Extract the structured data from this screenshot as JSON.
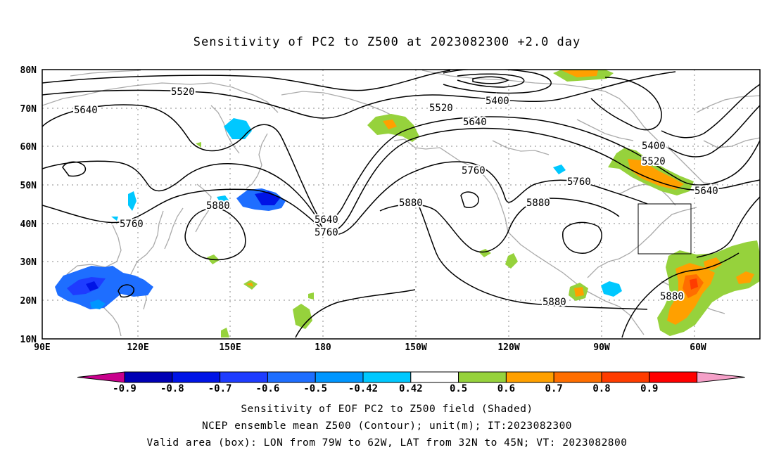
{
  "title": "Sensitivity of PC2 to Z500 at 2023082300 +2.0 day",
  "lat_labels": [
    "80N",
    "70N",
    "60N",
    "50N",
    "40N",
    "30N",
    "20N",
    "10N"
  ],
  "lon_labels": [
    "90E",
    "120E",
    "150E",
    "180",
    "150W",
    "120W",
    "90W",
    "60W"
  ],
  "contour_labels": [
    "5520",
    "5640",
    "5760",
    "5880",
    "5400",
    "5520",
    "5640",
    "5760",
    "5640",
    "5880",
    "5760",
    "5880",
    "5400",
    "5520",
    "5640",
    "5760",
    "5880",
    "5880"
  ],
  "colorbar": {
    "ticks": [
      "-0.9",
      "-0.8",
      "-0.7",
      "-0.6",
      "-0.5",
      "-0.42",
      "0.42",
      "0.5",
      "0.6",
      "0.7",
      "0.8",
      "0.9"
    ],
    "colors": [
      "#c8008c",
      "#0000b4",
      "#0014e6",
      "#1e3cff",
      "#1e6eff",
      "#0096ff",
      "#00c8ff",
      "#ffffff",
      "#96d23c",
      "#ffa000",
      "#ff6e00",
      "#ff3c00",
      "#ff0000",
      "#f5a0c8"
    ]
  },
  "captions": [
    "Sensitivity of EOF PC2 to Z500 field (Shaded)",
    "NCEP ensemble mean Z500 (Contour); unit(m); IT:2023082300",
    "Valid area (box): LON from 79W to 62W, LAT from 32N to 45N; VT: 2023082800"
  ]
}
